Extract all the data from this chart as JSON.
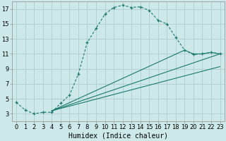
{
  "xlabel": "Humidex (Indice chaleur)",
  "background_color": "#cce8e8",
  "grid_color": "#b0cccc",
  "line_color": "#1a7a6e",
  "xlim": [
    -0.5,
    23.5
  ],
  "ylim": [
    2.0,
    18.0
  ],
  "yticks": [
    3,
    5,
    7,
    9,
    11,
    13,
    15,
    17
  ],
  "xticks": [
    0,
    1,
    2,
    3,
    4,
    5,
    6,
    7,
    8,
    9,
    10,
    11,
    12,
    13,
    14,
    15,
    16,
    17,
    18,
    19,
    20,
    21,
    22,
    23
  ],
  "curve1_x": [
    0,
    1,
    2,
    3,
    4,
    5,
    6,
    7,
    8,
    9,
    10,
    11,
    12,
    13,
    14,
    15,
    16,
    17,
    18,
    19,
    20,
    21,
    22,
    23
  ],
  "curve1_y": [
    4.5,
    3.5,
    3.0,
    3.2,
    3.2,
    4.4,
    5.5,
    8.3,
    12.5,
    14.4,
    16.3,
    17.2,
    17.5,
    17.2,
    17.3,
    16.8,
    15.5,
    15.0,
    13.2,
    11.5,
    10.9,
    11.0,
    11.2,
    11.0
  ],
  "curve2_x": [
    4,
    23
  ],
  "curve2_y": [
    3.4,
    11.0
  ],
  "curve3_x": [
    4,
    19,
    20,
    21,
    22,
    23
  ],
  "curve3_y": [
    3.4,
    11.5,
    11.0,
    11.0,
    11.2,
    11.0
  ],
  "curve4_x": [
    4,
    23
  ],
  "curve4_y": [
    3.4,
    9.3
  ],
  "font_size_xlabel": 7,
  "font_size_ticks": 6
}
